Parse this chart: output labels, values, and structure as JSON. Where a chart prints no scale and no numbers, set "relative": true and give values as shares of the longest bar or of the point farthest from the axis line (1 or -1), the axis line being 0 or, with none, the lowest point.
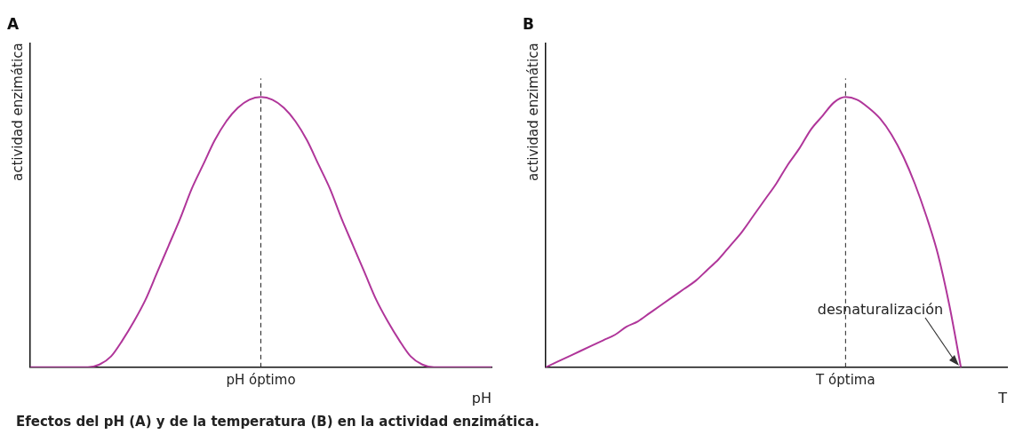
{
  "chart_data": [
    {
      "type": "line",
      "title": "A",
      "xlabel": "pH",
      "ylabel": "actividad enzimática",
      "relative": true,
      "grid": false,
      "legend": false,
      "marker": "none",
      "categories": [
        null,
        null,
        null,
        null,
        null,
        null,
        null,
        null,
        null,
        null,
        null,
        null,
        null,
        null,
        null,
        null,
        null,
        null,
        null,
        null,
        null,
        null,
        null,
        null,
        null,
        null,
        null,
        null,
        null,
        null,
        null,
        null,
        null,
        null,
        null,
        null,
        null,
        null,
        null,
        null,
        null
      ],
      "series": [
        {
          "color": "#b0369a",
          "values": [
            0,
            0,
            0,
            0,
            0,
            0,
            0.01,
            0.04,
            0.1,
            0.17,
            0.25,
            0.35,
            0.45,
            0.55,
            0.66,
            0.75,
            0.84,
            0.91,
            0.96,
            0.99,
            1,
            0.99,
            0.96,
            0.91,
            0.84,
            0.75,
            0.66,
            0.55,
            0.45,
            0.35,
            0.25,
            0.17,
            0.1,
            0.04,
            0.01,
            0,
            0,
            0,
            0,
            0,
            0
          ]
        }
      ],
      "annotations": [
        "pH óptimo",
        "Efectos del pH (A) y de la temperatura (B) en la actividad enzimática."
      ]
    },
    {
      "type": "line",
      "title": "B",
      "xlabel": "T",
      "ylabel": "actividad enzimática",
      "relative": true,
      "grid": false,
      "legend": false,
      "marker": "none",
      "categories": [
        null,
        null,
        null,
        null,
        null,
        null,
        null,
        null,
        null,
        null,
        null,
        null,
        null,
        null,
        null,
        null,
        null,
        null,
        null,
        null,
        null,
        null,
        null,
        null,
        null,
        null,
        null,
        null,
        null,
        null,
        null,
        null,
        null,
        null,
        null,
        null,
        null,
        null,
        null,
        null,
        null
      ],
      "series": [
        {
          "color": "#b0369a",
          "values": [
            0,
            0.02,
            0.04,
            0.06,
            0.08,
            0.1,
            0.12,
            0.15,
            0.17,
            0.2,
            0.23,
            0.26,
            0.29,
            0.32,
            0.36,
            0.4,
            0.45,
            0.5,
            0.56,
            0.62,
            0.68,
            0.75,
            0.81,
            0.88,
            0.93,
            0.98,
            1,
            0.99,
            0.96,
            0.92,
            0.86,
            0.78,
            0.68,
            0.56,
            0.42,
            0.23,
            0,
            null,
            null,
            null,
            null
          ]
        }
      ],
      "annotations": [
        "T óptima",
        "desnaturalización"
      ]
    }
  ]
}
